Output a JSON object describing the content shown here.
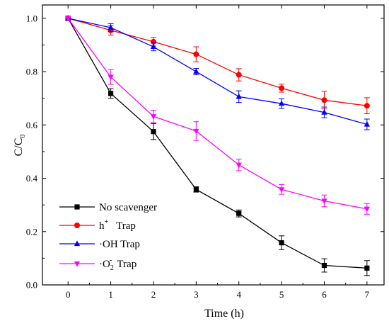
{
  "chart_data": {
    "type": "line",
    "xlabel": "Time (h)",
    "ylabel": "C/C",
    "ylabel_sub": "0",
    "xlim": [
      -0.6,
      7.4
    ],
    "ylim": [
      0.0,
      1.05
    ],
    "xticks": [
      0,
      1,
      2,
      3,
      4,
      5,
      6,
      7
    ],
    "xtick_labels": [
      "0",
      "1",
      "2",
      "3",
      "4",
      "5",
      "6",
      "7"
    ],
    "yticks": [
      0.0,
      0.2,
      0.4,
      0.6,
      0.8,
      1.0
    ],
    "ytick_labels": [
      "0.0",
      "0.2",
      "0.4",
      "0.6",
      "0.8",
      "1.0"
    ],
    "grid": false,
    "legend_position": "lower-left",
    "x": [
      0,
      1,
      2,
      3,
      4,
      5,
      6,
      7
    ],
    "series": [
      {
        "key": "none",
        "name": "No scavenger",
        "color": "#000000",
        "marker": "square",
        "values": [
          1.0,
          0.718,
          0.575,
          0.358,
          0.268,
          0.158,
          0.073,
          0.063
        ],
        "errors": [
          0.0,
          0.018,
          0.03,
          0.01,
          0.013,
          0.026,
          0.025,
          0.028
        ]
      },
      {
        "key": "h",
        "name": "h",
        "name_sup": "+",
        "name_suffix": "   Trap",
        "color": "#ff0000",
        "marker": "circle",
        "values": [
          1.0,
          0.955,
          0.912,
          0.865,
          0.788,
          0.738,
          0.693,
          0.672
        ],
        "errors": [
          0.0,
          0.018,
          0.016,
          0.028,
          0.023,
          0.015,
          0.033,
          0.03
        ]
      },
      {
        "key": "oh",
        "name": "·OH Trap",
        "color": "#0000ff",
        "marker": "triangle-up",
        "values": [
          1.0,
          0.965,
          0.893,
          0.8,
          0.706,
          0.68,
          0.647,
          0.602
        ],
        "errors": [
          0.0,
          0.015,
          0.015,
          0.012,
          0.022,
          0.018,
          0.02,
          0.02
        ]
      },
      {
        "key": "o2",
        "name": "·O",
        "name_sub": "2",
        "name_sup": "-",
        "name_suffix": "  Trap",
        "color": "#ff00ff",
        "marker": "triangle-down",
        "values": [
          1.0,
          0.78,
          0.632,
          0.577,
          0.45,
          0.358,
          0.315,
          0.285
        ],
        "errors": [
          0.0,
          0.028,
          0.023,
          0.035,
          0.022,
          0.018,
          0.022,
          0.02
        ]
      }
    ]
  }
}
